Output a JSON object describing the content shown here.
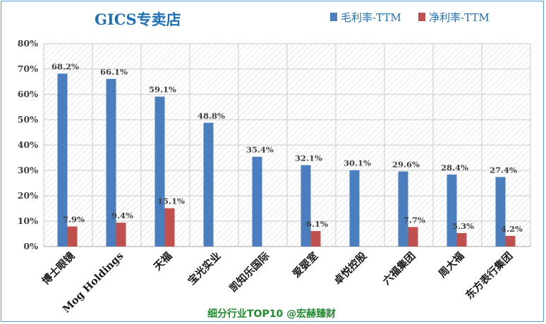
{
  "chart_data": {
    "type": "bar",
    "title": "GICS专卖店",
    "categories": [
      "博士眼镜",
      "Mog Holdings",
      "天福",
      "宝光实业",
      "凯知乐国际",
      "爱婴室",
      "卓悦控股",
      "六福集团",
      "周大福",
      "东方表行集团"
    ],
    "series": [
      {
        "name": "毛利率-TTM",
        "color": "#4a7ebf",
        "values": [
          68.2,
          66.1,
          59.1,
          48.8,
          35.4,
          32.1,
          30.1,
          29.6,
          28.4,
          27.4
        ]
      },
      {
        "name": "净利率-TTM",
        "color": "#c0504d",
        "values": [
          7.9,
          9.4,
          15.1,
          null,
          null,
          6.1,
          null,
          7.7,
          5.3,
          4.2
        ]
      }
    ],
    "data_labels": [
      [
        "68.2%",
        "66.1%",
        "59.1%",
        "48.8%",
        "35.4%",
        "32.1%",
        "30.1%",
        "29.6%",
        "28.4%",
        "27.4%"
      ],
      [
        "7.9%",
        "9.4%",
        "15.1%",
        "",
        "",
        "6.1%",
        "",
        "7.7%",
        "5.3%",
        "4.2%"
      ]
    ],
    "yticks": [
      "0%",
      "10%",
      "20%",
      "30%",
      "40%",
      "50%",
      "60%",
      "70%",
      "80%"
    ],
    "ylim": [
      0,
      80
    ],
    "legend_position": "top-right",
    "grid": true
  },
  "footer": "细分行业TOP10 @宏赫臻财"
}
